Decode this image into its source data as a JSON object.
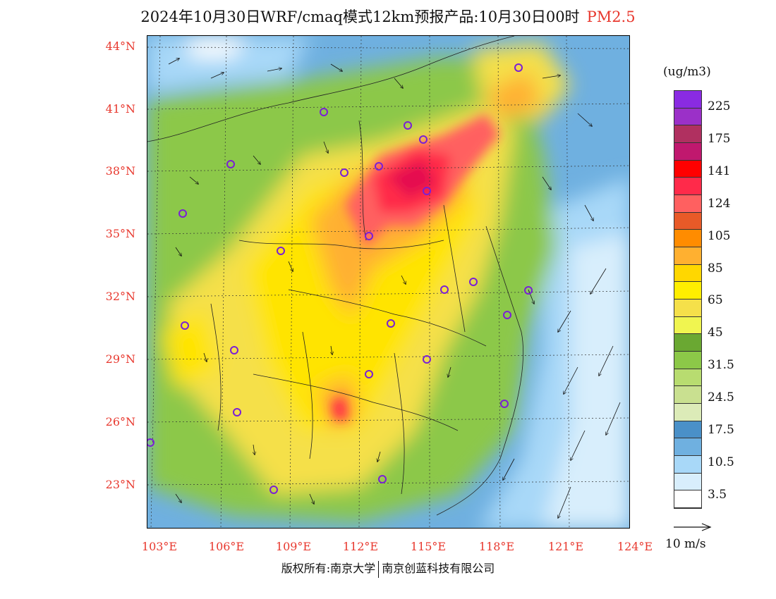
{
  "title": {
    "main": "2024年10月30日WRF/cmaq模式12km预报产品:10月30日00时",
    "pollutant": "PM2.5"
  },
  "latitude_labels": [
    "44°N",
    "41°N",
    "38°N",
    "35°N",
    "32°N",
    "29°N",
    "26°N",
    "23°N"
  ],
  "longitude_labels": [
    "103°E",
    "106°E",
    "109°E",
    "112°E",
    "115°E",
    "118°E",
    "121°E",
    "124°E"
  ],
  "legend": {
    "unit": "(ug/m3)",
    "labels": [
      "225",
      "175",
      "141",
      "124",
      "105",
      "85",
      "65",
      "45",
      "31.5",
      "24.5",
      "17.5",
      "10.5",
      "3.5"
    ],
    "colors": [
      "#8a2be2",
      "#9b30c8",
      "#b03060",
      "#c0186e",
      "#ff0000",
      "#ff2a4a",
      "#ff6060",
      "#e85a28",
      "#ff8c00",
      "#ffb030",
      "#ffd700",
      "#ffee00",
      "#f5e04a",
      "#f0f550",
      "#6aa832",
      "#8cc848",
      "#b8dc70",
      "#c9e090",
      "#dcebb8",
      "#4a90c8",
      "#6fb0e0",
      "#a8d8f8",
      "#d8eefc",
      "#ffffff"
    ]
  },
  "vector_key": {
    "label": "10 m/s"
  },
  "copyright": {
    "left": "版权所有:南京大学",
    "right": "南京创蓝科技有限公司"
  },
  "colors": {
    "axis_label": "#e8382e"
  }
}
